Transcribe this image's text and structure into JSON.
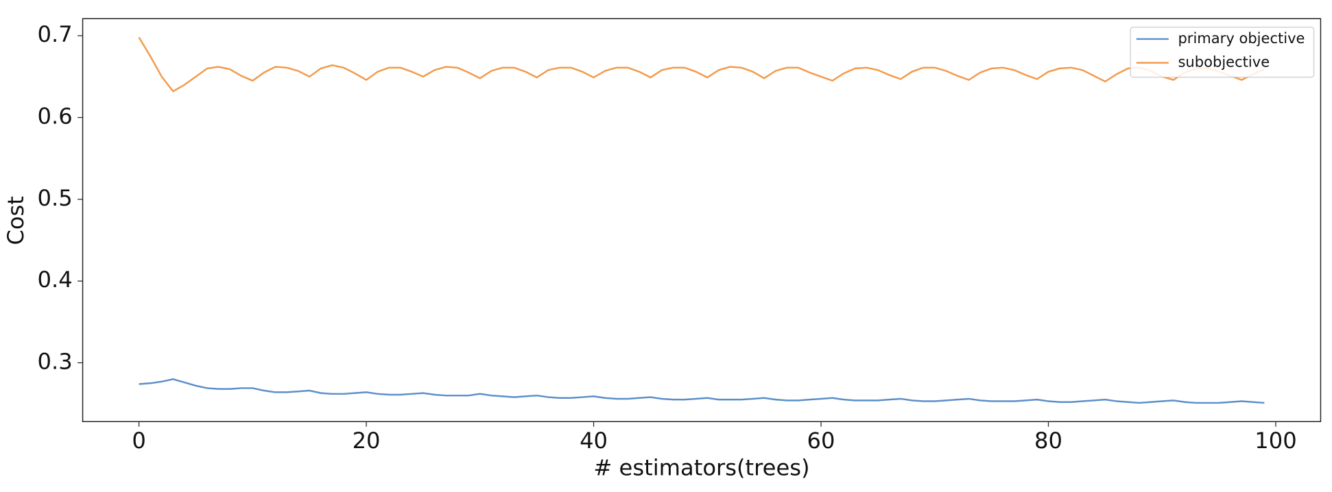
{
  "chart_data": {
    "type": "line",
    "x_label": "# estimators(trees)",
    "y_label": "Cost",
    "x": [
      0,
      1,
      2,
      3,
      4,
      5,
      6,
      7,
      8,
      9,
      10,
      11,
      12,
      13,
      14,
      15,
      16,
      17,
      18,
      19,
      20,
      21,
      22,
      23,
      24,
      25,
      26,
      27,
      28,
      29,
      30,
      31,
      32,
      33,
      34,
      35,
      36,
      37,
      38,
      39,
      40,
      41,
      42,
      43,
      44,
      45,
      46,
      47,
      48,
      49,
      50,
      51,
      52,
      53,
      54,
      55,
      56,
      57,
      58,
      59,
      60,
      61,
      62,
      63,
      64,
      65,
      66,
      67,
      68,
      69,
      70,
      71,
      72,
      73,
      74,
      75,
      76,
      77,
      78,
      79,
      80,
      81,
      82,
      83,
      84,
      85,
      86,
      87,
      88,
      89,
      90,
      91,
      92,
      93,
      94,
      95,
      96,
      97,
      98,
      99
    ],
    "series": [
      {
        "name": "primary objective",
        "color": "#5b8fc9",
        "values": [
          0.274,
          0.275,
          0.277,
          0.28,
          0.276,
          0.272,
          0.269,
          0.268,
          0.268,
          0.269,
          0.269,
          0.266,
          0.264,
          0.264,
          0.265,
          0.266,
          0.263,
          0.262,
          0.262,
          0.263,
          0.264,
          0.262,
          0.261,
          0.261,
          0.262,
          0.263,
          0.261,
          0.26,
          0.26,
          0.26,
          0.262,
          0.26,
          0.259,
          0.258,
          0.259,
          0.26,
          0.258,
          0.257,
          0.257,
          0.258,
          0.259,
          0.257,
          0.256,
          0.256,
          0.257,
          0.258,
          0.256,
          0.255,
          0.255,
          0.256,
          0.257,
          0.255,
          0.255,
          0.255,
          0.256,
          0.257,
          0.255,
          0.254,
          0.254,
          0.255,
          0.256,
          0.257,
          0.255,
          0.254,
          0.254,
          0.254,
          0.255,
          0.256,
          0.254,
          0.253,
          0.253,
          0.254,
          0.255,
          0.256,
          0.254,
          0.253,
          0.253,
          0.253,
          0.254,
          0.255,
          0.253,
          0.252,
          0.252,
          0.253,
          0.254,
          0.255,
          0.253,
          0.252,
          0.251,
          0.252,
          0.253,
          0.254,
          0.252,
          0.251,
          0.251,
          0.251,
          0.252,
          0.253,
          0.252,
          0.251
        ]
      },
      {
        "name": "subobjective",
        "color": "#f39a4a",
        "values": [
          0.698,
          0.675,
          0.65,
          0.632,
          0.64,
          0.65,
          0.66,
          0.662,
          0.659,
          0.651,
          0.645,
          0.655,
          0.662,
          0.661,
          0.657,
          0.65,
          0.66,
          0.664,
          0.661,
          0.654,
          0.646,
          0.656,
          0.661,
          0.661,
          0.656,
          0.65,
          0.658,
          0.662,
          0.661,
          0.655,
          0.648,
          0.657,
          0.661,
          0.661,
          0.656,
          0.649,
          0.658,
          0.661,
          0.661,
          0.656,
          0.649,
          0.657,
          0.661,
          0.661,
          0.656,
          0.649,
          0.658,
          0.661,
          0.661,
          0.656,
          0.649,
          0.658,
          0.662,
          0.661,
          0.656,
          0.648,
          0.657,
          0.661,
          0.661,
          0.655,
          0.65,
          0.645,
          0.654,
          0.66,
          0.661,
          0.658,
          0.652,
          0.647,
          0.656,
          0.661,
          0.661,
          0.657,
          0.651,
          0.646,
          0.655,
          0.66,
          0.661,
          0.658,
          0.652,
          0.647,
          0.656,
          0.66,
          0.661,
          0.658,
          0.651,
          0.644,
          0.653,
          0.66,
          0.661,
          0.657,
          0.65,
          0.646,
          0.655,
          0.66,
          0.66,
          0.656,
          0.651,
          0.646,
          0.653,
          0.659
        ]
      }
    ],
    "xlim": [
      -4.95,
      103.95
    ],
    "ylim": [
      0.2281,
      0.7209
    ],
    "xticks": [
      0,
      20,
      40,
      60,
      80,
      100
    ],
    "yticks": [
      0.3,
      0.4,
      0.5,
      0.6,
      0.7
    ],
    "legend": "upper right"
  }
}
